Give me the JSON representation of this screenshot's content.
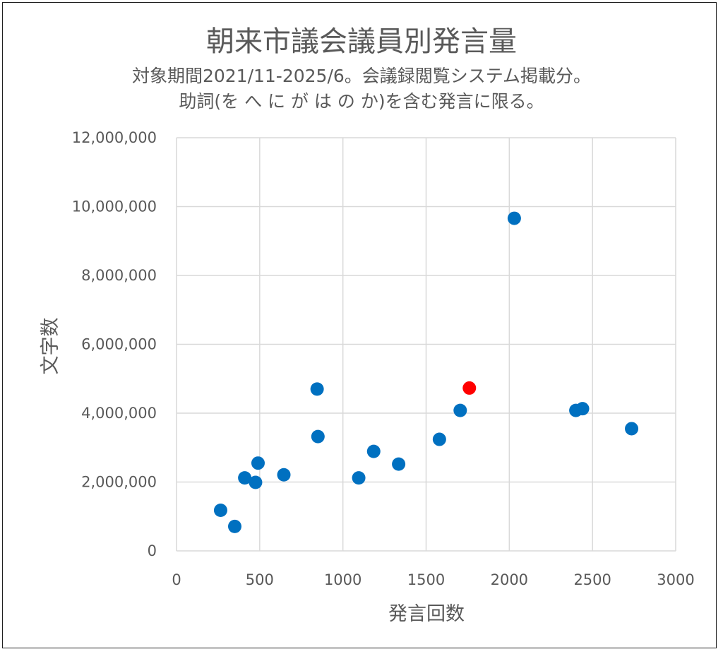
{
  "chart_data": {
    "type": "scatter",
    "title": "朝来市議会議員別発言量",
    "subtitle_lines": [
      "対象期間2021/11-2025/6。会議録閲覧システム掲載分。",
      "助詞(を へ に が は の か)を含む発言に限る。"
    ],
    "xlabel": "発言回数",
    "ylabel": "文字数",
    "xlim": [
      0,
      3000
    ],
    "ylim": [
      0,
      12000000
    ],
    "xticks": [
      0,
      500,
      1000,
      1500,
      2000,
      2500,
      3000
    ],
    "xtick_labels": [
      "0",
      "500",
      "1000",
      "1500",
      "2000",
      "2500",
      "3000"
    ],
    "yticks": [
      0,
      2000000,
      4000000,
      6000000,
      8000000,
      10000000,
      12000000
    ],
    "ytick_labels": [
      "0",
      "2,000,000",
      "4,000,000",
      "6,000,000",
      "8,000,000",
      "10,000,000",
      "12,000,000"
    ],
    "grid": true,
    "legend": "none",
    "colors": {
      "default": "#0070C0",
      "highlight": "#FF0000"
    },
    "points": [
      {
        "x": 265,
        "y": 1180000
      },
      {
        "x": 350,
        "y": 710000
      },
      {
        "x": 410,
        "y": 2120000
      },
      {
        "x": 475,
        "y": 1990000
      },
      {
        "x": 490,
        "y": 2550000
      },
      {
        "x": 645,
        "y": 2210000
      },
      {
        "x": 845,
        "y": 4700000
      },
      {
        "x": 850,
        "y": 3320000
      },
      {
        "x": 1095,
        "y": 2120000
      },
      {
        "x": 1185,
        "y": 2890000
      },
      {
        "x": 1335,
        "y": 2520000
      },
      {
        "x": 1580,
        "y": 3240000
      },
      {
        "x": 1705,
        "y": 4080000
      },
      {
        "x": 1760,
        "y": 4730000,
        "highlight": true
      },
      {
        "x": 2030,
        "y": 9660000
      },
      {
        "x": 2400,
        "y": 4080000
      },
      {
        "x": 2440,
        "y": 4130000
      },
      {
        "x": 2735,
        "y": 3550000
      }
    ]
  }
}
